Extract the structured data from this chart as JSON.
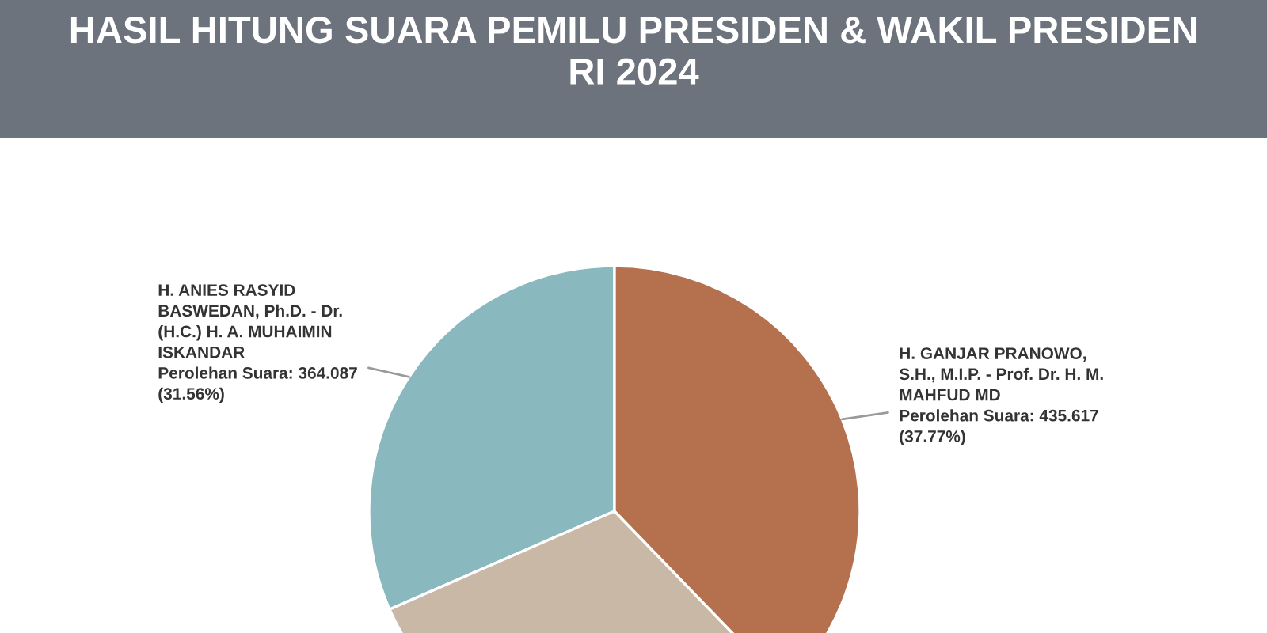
{
  "chart_data": {
    "type": "pie",
    "title": "HASIL HITUNG SUARA PEMILU PRESIDEN & WAKIL PRESIDEN\nRI 2024",
    "categories": [
      "H. ANIES RASYID\nBASWEDAN, Ph.D. - Dr.\n(H.C.) H. A. MUHAIMIN\nISKANDAR",
      null,
      "H. GANJAR PRANOWO,\nS.H., M.I.P. - Prof. Dr. H. M.\nMAHFUD MD"
    ],
    "values": [
      31.56,
      30.67,
      37.77
    ],
    "colors": [
      "#8ab8bf",
      "#c9b8a5",
      "#b5714e"
    ],
    "value_labels": [
      "Perolehan Suara: 364.087\n(31.56%)",
      null,
      "Perolehan Suara: 435.617\n(37.77%)"
    ]
  }
}
